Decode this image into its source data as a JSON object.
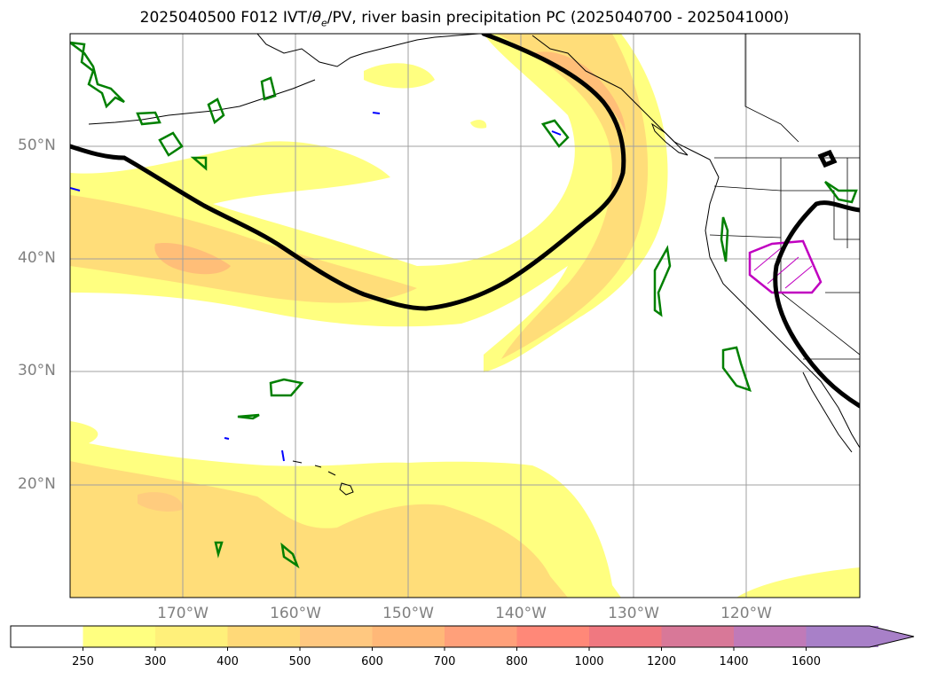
{
  "title": "2025040500 F012 IVT/θe/PV, river basin precipitation PC (2025040700 - 2025041000)",
  "title_parts": {
    "prefix": "2025040500 F012 IVT/",
    "theta": "θ",
    "theta_sub": "e",
    "suffix": "/PV, river basin precipitation PC (2025040700 - 2025041000)"
  },
  "map": {
    "lat_labels": [
      "50°N",
      "40°N",
      "30°N",
      "20°N"
    ],
    "lon_labels": [
      "170°W",
      "160°W",
      "150°W",
      "140°W",
      "130°W",
      "120°W"
    ],
    "lat_values": [
      50,
      40,
      30,
      20
    ],
    "lon_values": [
      -170,
      -160,
      -150,
      -140,
      -130,
      -120
    ],
    "lat_range": [
      10,
      60
    ],
    "lon_range": [
      -180,
      -110
    ],
    "grid": true
  },
  "colorbar": {
    "ticks": [
      "250",
      "300",
      "400",
      "500",
      "600",
      "700",
      "800",
      "1000",
      "1200",
      "1400",
      "1600"
    ],
    "colors": [
      "#ffff80",
      "#fff07a",
      "#ffd978",
      "#ffc880",
      "#ffb878",
      "#ffa07a",
      "#ff8878",
      "#f07880",
      "#d87898",
      "#c07ab8",
      "#a880c8"
    ],
    "extend": "max"
  },
  "contour_colors": {
    "ivt_low": "#ffff80",
    "ivt_mid": "#ffd978",
    "ivt_high": "#ffb878",
    "pv_line": "#000000",
    "theta_e": "#008000",
    "basin_outline": "#c000c0",
    "blue_contour": "#0000ff"
  }
}
